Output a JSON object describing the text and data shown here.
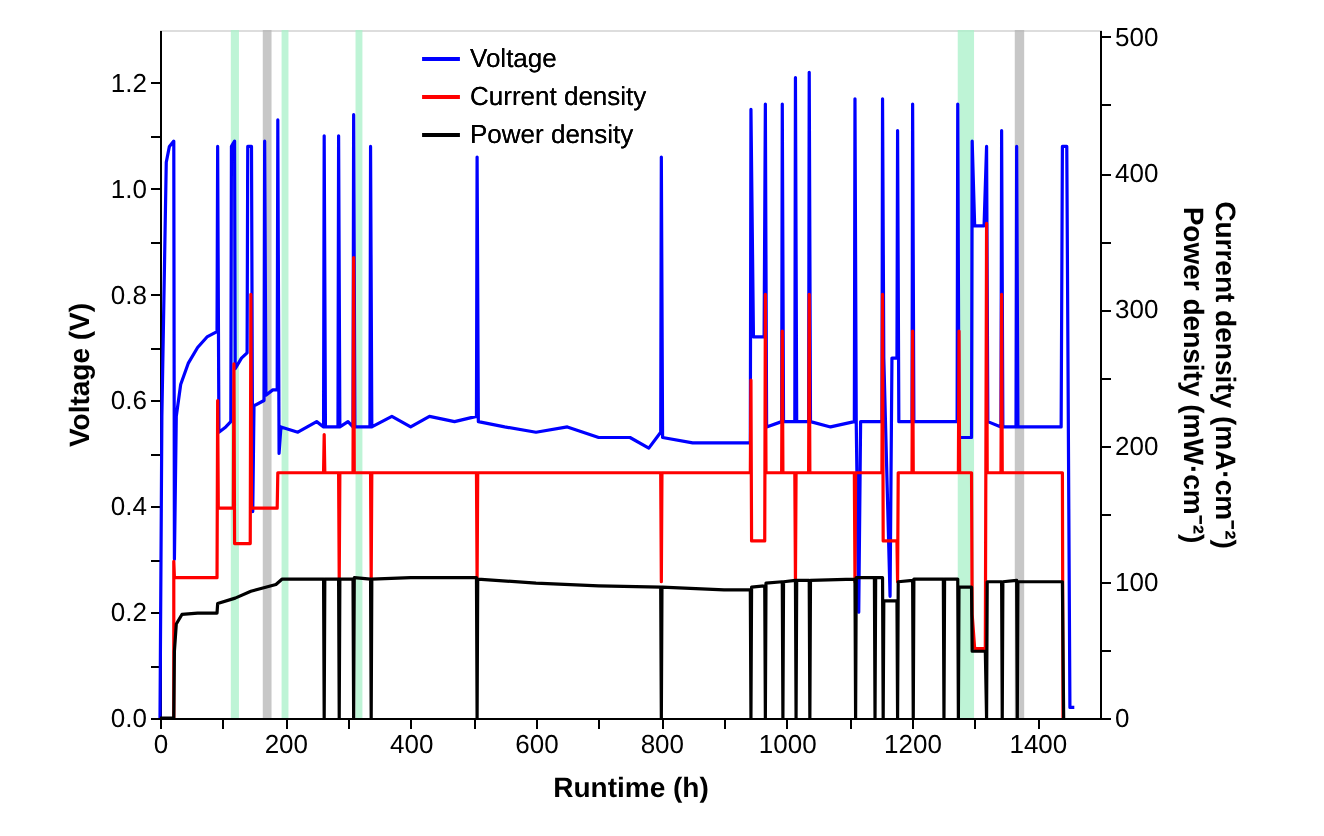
{
  "chart_data": {
    "type": "line",
    "xlabel": "Runtime (h)",
    "ylabel": "Voltage (V)",
    "y2label": "Current density (mA·cm⁻²)\nPower density (mW·cm⁻²)",
    "xlim": [
      0,
      1500
    ],
    "xticks": [
      0,
      {
        "value": 100,
        "label": null
      },
      200,
      {
        "value": 300,
        "label": null
      },
      400,
      {
        "value": 500,
        "label": null
      },
      600,
      {
        "value": 700,
        "label": null
      },
      800,
      {
        "value": 900,
        "label": null
      },
      1000,
      {
        "value": 1100,
        "label": null
      },
      1200,
      {
        "value": 1300,
        "label": null
      },
      1400
    ],
    "ylim": [
      0,
      1.3
    ],
    "yticks": [
      {
        "value": 0,
        "label": "0.0"
      },
      {
        "value": 0.1,
        "label": null
      },
      0.2,
      {
        "value": 0.3,
        "label": null
      },
      0.4,
      {
        "value": 0.5,
        "label": null
      },
      0.6,
      {
        "value": 0.7,
        "label": null
      },
      0.8,
      {
        "value": 0.9,
        "label": null
      },
      {
        "value": 1.0,
        "label": "1.0"
      },
      {
        "value": 1.1,
        "label": null
      },
      1.2
    ],
    "y2lim": [
      0,
      505
    ],
    "y2ticks": [
      0,
      {
        "value": 50,
        "label": null
      },
      100,
      {
        "value": 150,
        "label": null
      },
      200,
      {
        "value": 250,
        "label": null
      },
      300,
      {
        "value": 350,
        "label": null
      },
      400,
      {
        "value": 450,
        "label": null
      },
      500
    ],
    "grid": false,
    "legend": "top",
    "line_style": "solid",
    "marker": "none",
    "bands": [
      {
        "axis": "x",
        "from": 113,
        "to": 126,
        "color": "#a8f0c8"
      },
      {
        "axis": "x",
        "from": 164,
        "to": 178,
        "color": "#b4b4b4"
      },
      {
        "axis": "x",
        "from": 194,
        "to": 205,
        "color": "#a8f0c8"
      },
      {
        "axis": "x",
        "from": 312,
        "to": 323,
        "color": "#a8f0c8"
      },
      {
        "axis": "x",
        "from": 1273,
        "to": 1299,
        "color": "#a8f0c8"
      },
      {
        "axis": "x",
        "from": 1364,
        "to": 1379,
        "color": "#b4b4b4"
      }
    ],
    "series": [
      {
        "name": "Voltage",
        "color": "#0000ff",
        "x": [
          0,
          3,
          10,
          15,
          22,
          23,
          26,
          33,
          45,
          60,
          75,
          91,
          92,
          94,
          105,
          113,
          114,
          119,
          120,
          130,
          139,
          140,
          146,
          148,
          150,
          166,
          167,
          169,
          180,
          187,
          188,
          190,
          193,
          220,
          250,
          261,
          262,
          264,
          284,
          285,
          287,
          300,
          308,
          309,
          311,
          335,
          336,
          338,
          370,
          400,
          430,
          470,
          505,
          506,
          508,
          550,
          600,
          650,
          700,
          750,
          780,
          799,
          800,
          802,
          850,
          900,
          942,
          943,
          947,
          964,
          966,
          968,
          992,
          993,
          995,
          1013,
          1014,
          1016,
          1035,
          1036,
          1038,
          1070,
          1108,
          1109,
          1111,
          1115,
          1118,
          1152,
          1153,
          1155,
          1165,
          1168,
          1176,
          1177,
          1179,
          1200,
          1201,
          1203,
          1240,
          1272,
          1273,
          1275,
          1295,
          1296,
          1300,
          1315,
          1319,
          1321,
          1342,
          1343,
          1345,
          1366,
          1367,
          1369,
          1400,
          1438,
          1440,
          1447,
          1452,
          1459
        ],
        "values": [
          0,
          0.57,
          1.05,
          1.08,
          1.09,
          0.3,
          0.57,
          0.63,
          0.67,
          0.7,
          0.72,
          0.73,
          1.08,
          0.54,
          0.55,
          0.56,
          1.08,
          1.09,
          0.66,
          0.68,
          0.69,
          1.08,
          1.08,
          0.39,
          0.59,
          0.6,
          1.09,
          0.61,
          0.62,
          0.62,
          1.13,
          0.5,
          0.55,
          0.54,
          0.56,
          0.55,
          1.1,
          0.55,
          0.55,
          1.1,
          0.55,
          0.56,
          0.55,
          1.14,
          0.55,
          0.55,
          1.08,
          0.55,
          0.57,
          0.55,
          0.57,
          0.56,
          0.57,
          1.06,
          0.56,
          0.55,
          0.54,
          0.55,
          0.53,
          0.53,
          0.51,
          0.54,
          1.06,
          0.53,
          0.52,
          0.52,
          0.52,
          1.15,
          0.72,
          0.72,
          1.16,
          0.55,
          0.56,
          1.16,
          0.56,
          0.56,
          1.21,
          0.56,
          0.56,
          1.22,
          0.56,
          0.55,
          0.56,
          1.17,
          0.56,
          0.2,
          0.56,
          0.56,
          1.17,
          0.68,
          0.23,
          0.68,
          0.68,
          1.11,
          0.56,
          0.56,
          1.16,
          0.56,
          0.56,
          0.56,
          1.16,
          0.53,
          0.53,
          1.09,
          0.93,
          0.93,
          1.08,
          0.56,
          0.55,
          1.11,
          0.55,
          0.55,
          1.08,
          0.55,
          0.55,
          0.55,
          1.08,
          1.08,
          0.02,
          0.02
        ]
      },
      {
        "name": "Current density",
        "color": "#ff0000",
        "axis": "y2",
        "x": [
          22,
          22,
          23,
          91,
          92,
          93,
          117,
          118,
          119,
          144,
          145,
          146,
          187,
          188,
          261,
          262,
          263,
          285,
          286,
          287,
          308,
          309,
          310,
          336,
          337,
          338,
          505,
          506,
          507,
          799,
          800,
          801,
          942,
          943,
          944,
          965,
          966,
          967,
          992,
          993,
          994,
          1013,
          1014,
          1015,
          1035,
          1036,
          1037,
          1108,
          1109,
          1110,
          1152,
          1153,
          1154,
          1176,
          1177,
          1178,
          1200,
          1201,
          1202,
          1274,
          1275,
          1276,
          1295,
          1296,
          1300,
          1317,
          1319,
          1320,
          1342,
          1343,
          1344,
          1440,
          1441
        ],
        "values": [
          0,
          115,
          103,
          103,
          233,
          154,
          154,
          260,
          128,
          128,
          311,
          154,
          154,
          180,
          180,
          208,
          180,
          180,
          100,
          180,
          180,
          338,
          180,
          180,
          100,
          180,
          180,
          100,
          180,
          180,
          100,
          180,
          180,
          248,
          130,
          130,
          311,
          180,
          180,
          284,
          180,
          180,
          100,
          180,
          180,
          311,
          180,
          180,
          100,
          180,
          180,
          311,
          130,
          130,
          100,
          180,
          180,
          284,
          180,
          180,
          284,
          180,
          180,
          76,
          51,
          51,
          363,
          180,
          180,
          311,
          180,
          180,
          0
        ]
      },
      {
        "name": "Power density",
        "color": "#000000",
        "axis": "y2",
        "x": [
          0,
          22,
          23,
          26,
          35,
          60,
          91,
          92,
          120,
          145,
          185,
          195,
          261,
          262,
          263,
          285,
          286,
          287,
          308,
          309,
          310,
          336,
          337,
          338,
          400,
          505,
          506,
          507,
          600,
          700,
          799,
          800,
          801,
          900,
          942,
          943,
          944,
          965,
          966,
          967,
          993,
          994,
          995,
          1014,
          1015,
          1016,
          1036,
          1037,
          1038,
          1109,
          1110,
          1111,
          1140,
          1141,
          1142,
          1153,
          1154,
          1155,
          1176,
          1177,
          1178,
          1201,
          1202,
          1203,
          1250,
          1251,
          1252,
          1273,
          1274,
          1275,
          1295,
          1296,
          1317,
          1319,
          1320,
          1343,
          1344,
          1345,
          1367,
          1368,
          1369,
          1440,
          1442
        ],
        "values": [
          0,
          0,
          49,
          69,
          76,
          77,
          77,
          84,
          88,
          93,
          98,
          102,
          102,
          0,
          102,
          102,
          0,
          102,
          102,
          0,
          103,
          102,
          0,
          102,
          103,
          103,
          0,
          102,
          99,
          97,
          96,
          0,
          96,
          94,
          94,
          0,
          96,
          97,
          0,
          99,
          100,
          0,
          100,
          101,
          0,
          101,
          101,
          0,
          101,
          102,
          0,
          103,
          103,
          0,
          103,
          103,
          0,
          86,
          86,
          0,
          100,
          101,
          0,
          102,
          102,
          0,
          102,
          102,
          0,
          96,
          96,
          49,
          49,
          0,
          100,
          100,
          0,
          100,
          101,
          0,
          100,
          100,
          0
        ]
      }
    ]
  }
}
